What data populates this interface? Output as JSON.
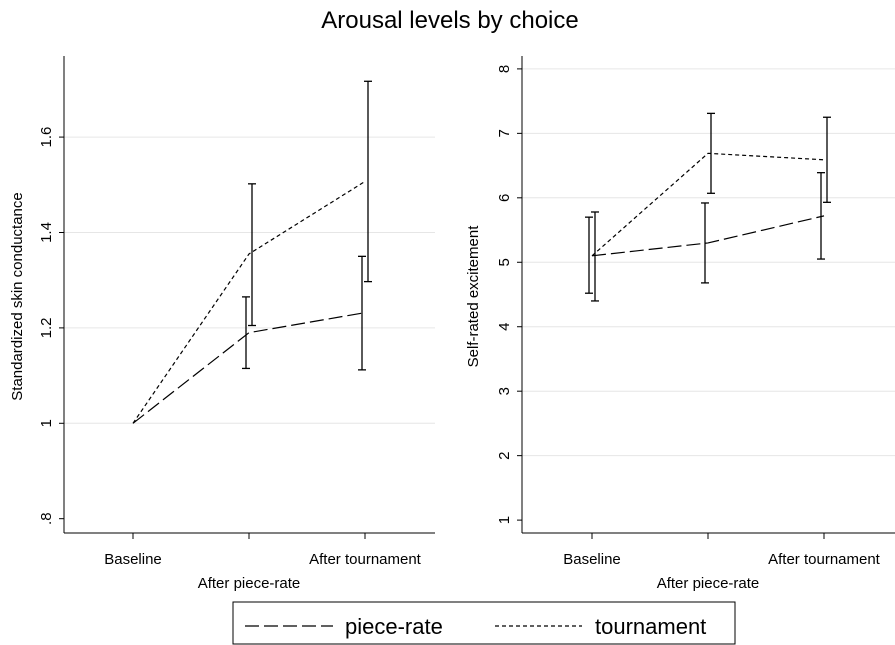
{
  "figure_title": "Arousal levels by choice",
  "chart_data": [
    {
      "type": "line",
      "categories": [
        "Baseline",
        "After piece-rate",
        "After tournament"
      ],
      "ylabel": "Standardized skin conductance",
      "ylim": [
        0.77,
        1.77
      ],
      "yticks": [
        0.8,
        1,
        1.2,
        1.4,
        1.6
      ],
      "ytick_labels": [
        ".8",
        "1",
        "1.2",
        "1.4",
        "1.6"
      ],
      "grid": true,
      "series": [
        {
          "name": "piece-rate",
          "dash": "long",
          "values": [
            1.0,
            1.19,
            1.232
          ],
          "ci_low": [
            null,
            1.115,
            1.112
          ],
          "ci_high": [
            null,
            1.265,
            1.35
          ]
        },
        {
          "name": "tournament",
          "dash": "short",
          "values": [
            1.0,
            1.355,
            1.507
          ],
          "ci_low": [
            null,
            1.205,
            1.297
          ],
          "ci_high": [
            null,
            1.502,
            1.717
          ]
        }
      ]
    },
    {
      "type": "line",
      "categories": [
        "Baseline",
        "After piece-rate",
        "After tournament"
      ],
      "ylabel": "Self-rated excitement",
      "ylim": [
        0.8,
        8.2
      ],
      "yticks": [
        1,
        2,
        3,
        4,
        5,
        6,
        7,
        8
      ],
      "ytick_labels": [
        "1",
        "2",
        "3",
        "4",
        "5",
        "6",
        "7",
        "8"
      ],
      "grid": true,
      "series": [
        {
          "name": "piece-rate",
          "dash": "long",
          "values": [
            5.1,
            5.3,
            5.72
          ],
          "ci_low": [
            4.52,
            4.68,
            5.05
          ],
          "ci_high": [
            5.7,
            5.92,
            6.39
          ]
        },
        {
          "name": "tournament",
          "dash": "short",
          "values": [
            5.1,
            6.69,
            6.59
          ],
          "ci_low": [
            4.4,
            6.07,
            5.93
          ],
          "ci_high": [
            5.78,
            7.31,
            7.25
          ]
        }
      ]
    }
  ],
  "legend": {
    "placement": "bottom-center",
    "items": [
      {
        "label": "piece-rate",
        "dash": "long"
      },
      {
        "label": "tournament",
        "dash": "short"
      }
    ]
  }
}
